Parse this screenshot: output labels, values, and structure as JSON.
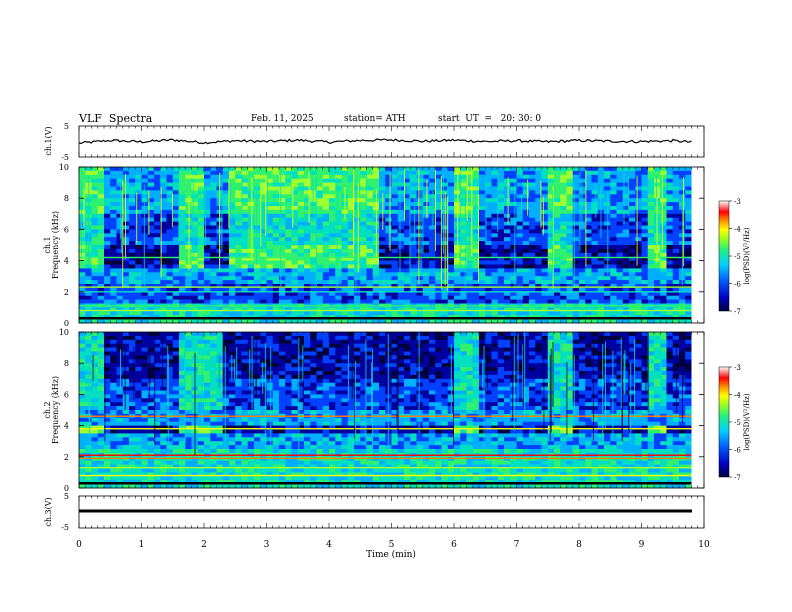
{
  "header": {
    "title": "VLF  Spectra",
    "date": "Feb. 11, 2025",
    "station": "station= ATH",
    "start": "start  UT  =   20: 30: 0"
  },
  "chart_data": [
    {
      "type": "line",
      "name": "ch1-waveform",
      "ylabel": "ch.1(V)",
      "ylim": [
        -5,
        5
      ],
      "yticks": [
        "5",
        "-5"
      ],
      "x": [
        0,
        0.5,
        1,
        1.5,
        2,
        2.5,
        3,
        3.5,
        4,
        4.5,
        5,
        5.5,
        6,
        6.5,
        7,
        7.5,
        8,
        8.5,
        9,
        9.5,
        9.8
      ],
      "values": [
        -0.8,
        0.2,
        -0.3,
        0.4,
        -0.6,
        0.1,
        -0.2,
        0.3,
        -0.4,
        0.2,
        0.4,
        -0.1,
        0.3,
        -0.2,
        0.1,
        -0.3,
        0.2,
        -0.1,
        -0.2,
        0.1,
        -0.4
      ],
      "color": "#000000"
    },
    {
      "type": "heatmap",
      "name": "ch1-spectrogram",
      "ylabel": "ch.1\nFrequency (kHz)",
      "ylim": [
        0,
        10
      ],
      "yticks": [
        "0",
        "2",
        "4",
        "6",
        "8",
        "10"
      ],
      "colorbar_label": "log(PSD)(V²/Hz)",
      "colorbar_ticks": [
        "-3",
        "-4",
        "-5",
        "-6",
        "-7"
      ],
      "transmitter_on_min": [
        [
          0.45,
          1.65
        ],
        [
          2.05,
          2.35
        ],
        [
          4.8,
          6.0
        ],
        [
          6.4,
          7.55
        ],
        [
          7.9,
          9.05
        ],
        [
          9.45,
          9.8
        ]
      ],
      "band_khz": [
        3.6,
        4.9
      ]
    },
    {
      "type": "heatmap",
      "name": "ch2-spectrogram",
      "ylabel": "ch.2\nFrequency (kHz)",
      "ylim": [
        0,
        10
      ],
      "yticks": [
        "0",
        "2",
        "4",
        "6",
        "8",
        "10"
      ],
      "colorbar_label": "log(PSD)(V²/Hz)",
      "colorbar_ticks": [
        "-3",
        "-4",
        "-5",
        "-6",
        "-7"
      ],
      "transmitter_on_min": [
        [
          0.45,
          1.65
        ],
        [
          2.35,
          4.8
        ],
        [
          4.8,
          6.0
        ],
        [
          6.4,
          7.55
        ],
        [
          7.9,
          9.05
        ],
        [
          9.45,
          9.8
        ]
      ],
      "band_khz": [
        3.5,
        4.0
      ]
    },
    {
      "type": "line",
      "name": "ch3-waveform",
      "ylabel": "ch.3(V)",
      "ylim": [
        -5,
        5
      ],
      "yticks": [
        "5",
        "-5"
      ],
      "x": [
        0,
        9.8
      ],
      "values": [
        -0.3,
        -0.3
      ],
      "color": "#000000"
    }
  ],
  "xaxis": {
    "label": "Time  (min)",
    "ticks": [
      "0",
      "1",
      "2",
      "3",
      "4",
      "5",
      "6",
      "7",
      "8",
      "9",
      "10"
    ],
    "xlim": [
      0,
      10
    ]
  },
  "colormap": [
    "#000040",
    "#0000a0",
    "#0040ff",
    "#00b0ff",
    "#00e0c0",
    "#30f070",
    "#a0ff30",
    "#ffff00",
    "#ff8000",
    "#ff0000",
    "#ffc0c0",
    "#ffffff"
  ]
}
